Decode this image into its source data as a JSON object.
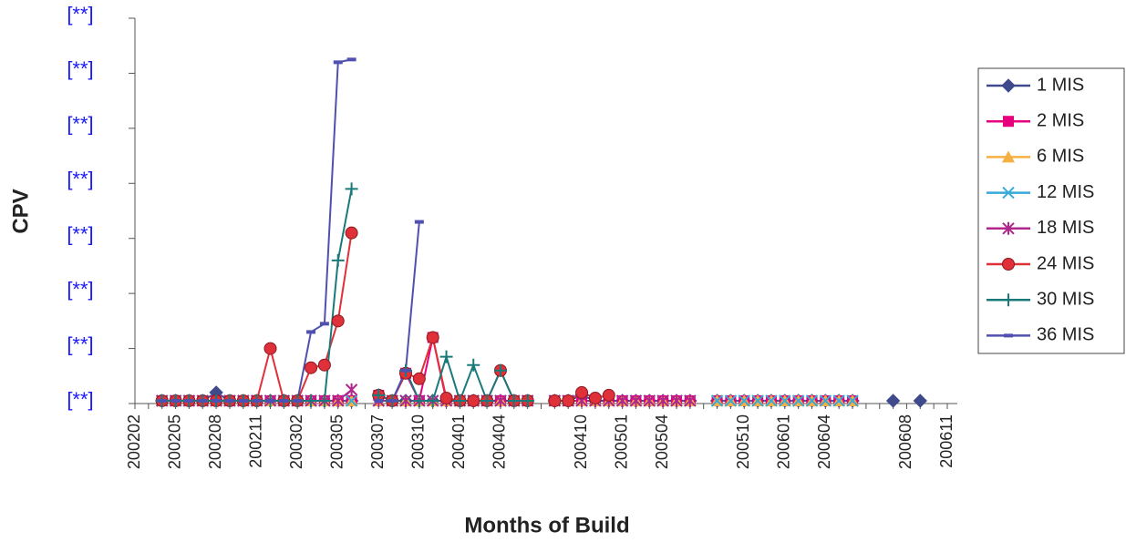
{
  "chart_data": {
    "type": "line",
    "ylabel": "CPV",
    "xlabel": "Months of Build",
    "categories": [
      "200202",
      null,
      null,
      "200205",
      null,
      null,
      "200208",
      null,
      null,
      "200211",
      null,
      null,
      "200302",
      null,
      null,
      "200305",
      null,
      null,
      "200307",
      null,
      null,
      "200310",
      null,
      null,
      "200401",
      null,
      null,
      "200404",
      null,
      null,
      null,
      null,
      null,
      "200410",
      null,
      null,
      "200501",
      null,
      null,
      "200504",
      null,
      null,
      null,
      null,
      null,
      "200510",
      null,
      null,
      "200601",
      null,
      null,
      "200604",
      null,
      null,
      null,
      null,
      null,
      "200608",
      null,
      null,
      "200611"
    ],
    "ylim": [
      0,
      7
    ],
    "yticks": [
      {
        "value": 0,
        "label": "[**]"
      },
      {
        "value": 1,
        "label": "[**]"
      },
      {
        "value": 2,
        "label": "[**]"
      },
      {
        "value": 3,
        "label": "[**]"
      },
      {
        "value": 4,
        "label": "[**]"
      },
      {
        "value": 5,
        "label": "[**]"
      },
      {
        "value": 6,
        "label": "[**]"
      },
      {
        "value": 7,
        "label": "[**]"
      }
    ],
    "legend": "right",
    "series": [
      {
        "name": "1 MIS",
        "color": "#3f4a8c",
        "marker": "diamond",
        "values": [
          null,
          null,
          0.05,
          0.05,
          0.05,
          0.05,
          0.2,
          0.05,
          0.05,
          0.05,
          0.05,
          0.05,
          0.05,
          0.05,
          0.05,
          0.05,
          0.05,
          null,
          0.15,
          0.05,
          0.05,
          0.05,
          0.05,
          0.05,
          0.05,
          0.05,
          0.05,
          0.05,
          0.05,
          0.05,
          null,
          0.05,
          0.05,
          0.15,
          0.05,
          0.05,
          0.05,
          0.05,
          0.05,
          0.05,
          0.05,
          0.05,
          null,
          0.05,
          0.05,
          0.05,
          0.05,
          0.05,
          0.05,
          0.05,
          0.05,
          0.05,
          0.05,
          0.05,
          null,
          null,
          0.05,
          null,
          0.05,
          null,
          null
        ]
      },
      {
        "name": "2 MIS",
        "color": "#e6007e",
        "marker": "square",
        "values": [
          null,
          null,
          0.05,
          0.05,
          0.05,
          0.05,
          0.05,
          0.05,
          0.05,
          0.05,
          0.05,
          0.05,
          0.05,
          0.05,
          0.05,
          0.05,
          0.05,
          null,
          0.15,
          0.05,
          0.55,
          0.05,
          1.2,
          0.05,
          0.05,
          0.05,
          0.05,
          0.05,
          0.05,
          0.05,
          null,
          0.05,
          0.05,
          0.05,
          0.05,
          0.05,
          0.05,
          0.05,
          0.05,
          0.05,
          0.05,
          0.05,
          null,
          0.05,
          0.05,
          0.05,
          0.05,
          0.05,
          0.05,
          0.05,
          0.05,
          0.05,
          0.05,
          0.05,
          null,
          null,
          null,
          null,
          null,
          null,
          null
        ]
      },
      {
        "name": "6 MIS",
        "color": "#f5b041",
        "marker": "triangle",
        "values": [
          null,
          null,
          0.05,
          0.05,
          0.05,
          0.05,
          0.05,
          0.05,
          0.05,
          0.05,
          0.05,
          0.05,
          0.05,
          0.05,
          0.05,
          0.05,
          0.05,
          null,
          0.05,
          0.05,
          0.05,
          0.05,
          0.05,
          0.05,
          0.05,
          0.05,
          0.05,
          0.05,
          0.05,
          0.05,
          null,
          0.05,
          0.05,
          0.05,
          0.05,
          0.05,
          0.05,
          0.05,
          0.05,
          0.05,
          0.05,
          0.05,
          null,
          0.05,
          0.05,
          0.05,
          0.05,
          0.05,
          0.05,
          0.05,
          0.05,
          0.05,
          0.05,
          0.05,
          null,
          null,
          null,
          null,
          null,
          null,
          null
        ]
      },
      {
        "name": "12 MIS",
        "color": "#38a9d8",
        "marker": "x",
        "values": [
          null,
          null,
          0.05,
          0.05,
          0.05,
          0.05,
          0.05,
          0.05,
          0.05,
          0.05,
          0.05,
          0.05,
          0.05,
          0.05,
          0.05,
          0.05,
          0.05,
          null,
          0.05,
          0.05,
          0.05,
          0.05,
          0.05,
          0.05,
          0.05,
          0.05,
          0.05,
          0.05,
          0.05,
          0.05,
          null,
          0.05,
          0.05,
          0.05,
          0.05,
          0.05,
          0.05,
          0.05,
          0.05,
          0.05,
          0.05,
          0.05,
          null,
          0.05,
          0.05,
          0.05,
          0.05,
          0.05,
          0.05,
          0.05,
          0.05,
          0.05,
          0.05,
          0.05,
          null,
          null,
          null,
          null,
          null,
          null,
          null
        ]
      },
      {
        "name": "18 MIS",
        "color": "#b0268c",
        "marker": "star",
        "values": [
          null,
          null,
          0.05,
          0.05,
          0.05,
          0.05,
          0.05,
          0.05,
          0.05,
          0.05,
          0.05,
          0.05,
          0.05,
          0.05,
          0.05,
          0.05,
          0.25,
          null,
          0.05,
          0.05,
          0.05,
          0.05,
          0.05,
          0.05,
          0.05,
          0.05,
          0.05,
          0.05,
          0.05,
          0.05,
          null,
          0.05,
          0.05,
          0.05,
          0.05,
          0.05,
          0.05,
          0.05,
          0.05,
          0.05,
          0.05,
          0.05,
          null,
          null,
          null,
          null,
          null,
          null,
          null,
          null,
          null,
          null,
          null,
          null,
          null,
          null,
          null,
          null,
          null,
          null,
          null
        ]
      },
      {
        "name": "24 MIS",
        "color": "#e0303a",
        "marker": "circle",
        "values": [
          null,
          null,
          0.05,
          0.05,
          0.05,
          0.05,
          0.05,
          0.05,
          0.05,
          0.05,
          1.0,
          0.05,
          0.05,
          0.65,
          0.7,
          1.5,
          3.1,
          null,
          0.15,
          0.05,
          0.55,
          0.45,
          1.2,
          0.1,
          0.05,
          0.05,
          0.05,
          0.6,
          0.05,
          0.05,
          null,
          0.05,
          0.05,
          0.2,
          0.1,
          0.15,
          null,
          null,
          null,
          null,
          null,
          null,
          null,
          null,
          null,
          null,
          null,
          null,
          null,
          null,
          null,
          null,
          null,
          null,
          null,
          null,
          null,
          null,
          null,
          null,
          null
        ]
      },
      {
        "name": "30 MIS",
        "color": "#1a7a7a",
        "marker": "plus",
        "values": [
          null,
          null,
          0.05,
          0.05,
          0.05,
          0.05,
          0.05,
          0.05,
          0.05,
          0.05,
          0.05,
          0.05,
          0.05,
          0.05,
          0.05,
          2.6,
          3.9,
          null,
          0.15,
          0.05,
          0.6,
          0.05,
          0.05,
          0.85,
          0.05,
          0.7,
          0.05,
          0.6,
          0.05,
          0.05,
          null,
          null,
          null,
          null,
          null,
          null,
          null,
          null,
          null,
          null,
          null,
          null,
          null,
          null,
          null,
          null,
          null,
          null,
          null,
          null,
          null,
          null,
          null,
          null,
          null,
          null,
          null,
          null,
          null,
          null,
          null
        ]
      },
      {
        "name": "36 MIS",
        "color": "#5050b0",
        "marker": "dash",
        "values": [
          null,
          null,
          0.05,
          0.05,
          0.05,
          0.05,
          0.05,
          0.05,
          0.05,
          0.05,
          0.05,
          0.05,
          0.05,
          1.3,
          1.45,
          6.2,
          6.25,
          null,
          0.05,
          0.05,
          0.6,
          3.3,
          null,
          null,
          null,
          null,
          null,
          null,
          null,
          null,
          null,
          null,
          null,
          null,
          null,
          null,
          null,
          null,
          null,
          null,
          null,
          null,
          null,
          null,
          null,
          null,
          null,
          null,
          null,
          null,
          null,
          null,
          null,
          null,
          null,
          null,
          null,
          null,
          null,
          null,
          null
        ]
      }
    ]
  }
}
